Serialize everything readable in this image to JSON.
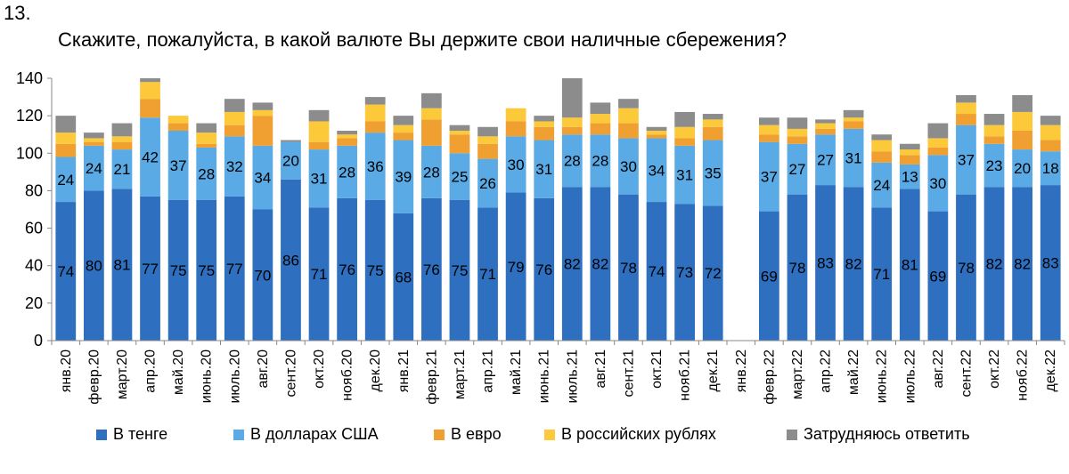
{
  "question_number": "13.",
  "chart_data": {
    "type": "bar",
    "stacked": true,
    "title": "Скажите, пожалуйста, в какой валюте Вы держите свои наличные сбережения?",
    "xlabel": "",
    "ylabel": "",
    "ylim": [
      0,
      140
    ],
    "yticks": [
      0,
      20,
      40,
      60,
      80,
      100,
      120,
      140
    ],
    "grid": false,
    "legend_position": "bottom",
    "categories": [
      "янв.20",
      "февр.20",
      "март.20",
      "апр.20",
      "май.20",
      "июнь.20",
      "июль.20",
      "авг.20",
      "сент.20",
      "окт.20",
      "нояб.20",
      "дек.20",
      "янв.21",
      "февр.21",
      "март.21",
      "апр.21",
      "май.21",
      "июнь.21",
      "июль.21",
      "авг.21",
      "сент.21",
      "окт.21",
      "нояб.21",
      "дек.21",
      "янв.22",
      "февр.22",
      "март.22",
      "апр.22",
      "май.22",
      "июнь.22",
      "июль.22",
      "авг.22",
      "сент.22",
      "окт.22",
      "нояб.22",
      "дек.22"
    ],
    "series": [
      {
        "name": "В тенге",
        "color": "#2e6fc0",
        "show_labels": true,
        "values": [
          74,
          80,
          81,
          77,
          75,
          75,
          77,
          70,
          86,
          71,
          76,
          75,
          68,
          76,
          75,
          71,
          79,
          76,
          82,
          82,
          78,
          74,
          73,
          72,
          null,
          69,
          78,
          83,
          82,
          71,
          81,
          69,
          78,
          82,
          82,
          83
        ]
      },
      {
        "name": "В долларах США",
        "color": "#5aaae6",
        "show_labels": true,
        "values": [
          24,
          24,
          21,
          42,
          37,
          28,
          32,
          34,
          20,
          31,
          28,
          36,
          39,
          28,
          25,
          26,
          30,
          31,
          28,
          28,
          30,
          34,
          31,
          35,
          null,
          37,
          27,
          27,
          31,
          24,
          13,
          30,
          37,
          23,
          20,
          18
        ]
      },
      {
        "name": "В евро",
        "color": "#f0a030",
        "show_labels": false,
        "values": [
          7,
          2,
          4,
          10,
          4,
          2,
          6,
          16,
          0,
          4,
          4,
          6,
          4,
          14,
          10,
          8,
          8,
          7,
          4,
          6,
          8,
          2,
          4,
          7,
          null,
          4,
          4,
          3,
          4,
          6,
          5,
          4,
          6,
          4,
          10,
          6
        ]
      },
      {
        "name": "В российских рублях",
        "color": "#fcc93a",
        "show_labels": false,
        "values": [
          6,
          2,
          3,
          9,
          4,
          6,
          7,
          3,
          0,
          11,
          2,
          9,
          4,
          6,
          2,
          4,
          7,
          3,
          5,
          5,
          8,
          2,
          6,
          4,
          null,
          5,
          4,
          3,
          2,
          6,
          3,
          5,
          6,
          6,
          10,
          8
        ]
      },
      {
        "name": "Затрудняюсь ответить",
        "color": "#8c8c8c",
        "show_labels": false,
        "values": [
          9,
          3,
          7,
          2,
          0,
          5,
          7,
          4,
          1,
          6,
          2,
          4,
          5,
          8,
          3,
          5,
          0,
          3,
          21,
          6,
          5,
          2,
          8,
          3,
          null,
          4,
          6,
          2,
          4,
          3,
          3,
          8,
          4,
          6,
          9,
          5
        ]
      }
    ]
  }
}
